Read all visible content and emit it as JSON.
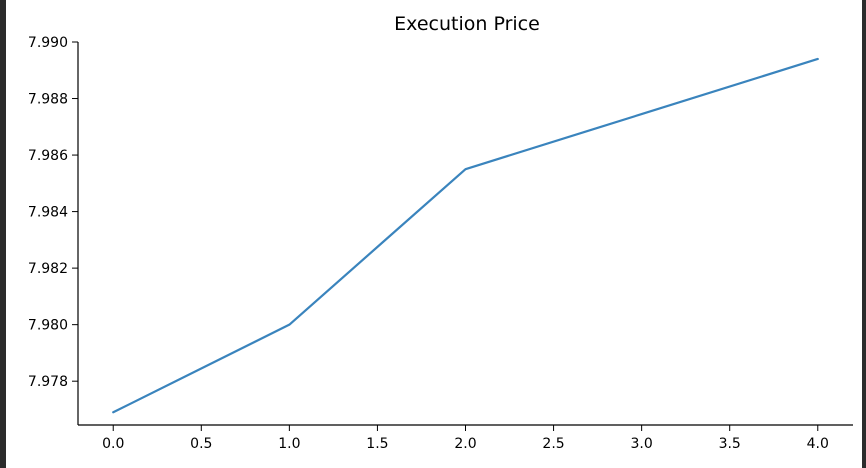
{
  "chart_data": {
    "type": "line",
    "title": "Execution Price",
    "xlabel": "",
    "ylabel": "",
    "x": [
      0,
      1,
      2,
      3,
      4
    ],
    "series": [
      {
        "values": [
          7.9769,
          7.98,
          7.9855,
          7.98745,
          7.9894
        ],
        "color": "#3a84bd"
      }
    ],
    "xlim": [
      -0.2,
      4.2
    ],
    "ylim": [
      7.97645,
      7.99
    ],
    "x_ticks": [
      {
        "value": 0.0,
        "label": "0.0"
      },
      {
        "value": 0.5,
        "label": "0.5"
      },
      {
        "value": 1.0,
        "label": "1.0"
      },
      {
        "value": 1.5,
        "label": "1.5"
      },
      {
        "value": 2.0,
        "label": "2.0"
      },
      {
        "value": 2.5,
        "label": "2.5"
      },
      {
        "value": 3.0,
        "label": "3.0"
      },
      {
        "value": 3.5,
        "label": "3.5"
      },
      {
        "value": 4.0,
        "label": "4.0"
      }
    ],
    "y_ticks": [
      {
        "value": 7.978,
        "label": "7.978"
      },
      {
        "value": 7.98,
        "label": "7.980"
      },
      {
        "value": 7.982,
        "label": "7.982"
      },
      {
        "value": 7.984,
        "label": "7.984"
      },
      {
        "value": 7.986,
        "label": "7.986"
      },
      {
        "value": 7.988,
        "label": "7.988"
      },
      {
        "value": 7.99,
        "label": "7.990"
      }
    ],
    "grid": false,
    "spines": [
      "left",
      "bottom"
    ]
  }
}
